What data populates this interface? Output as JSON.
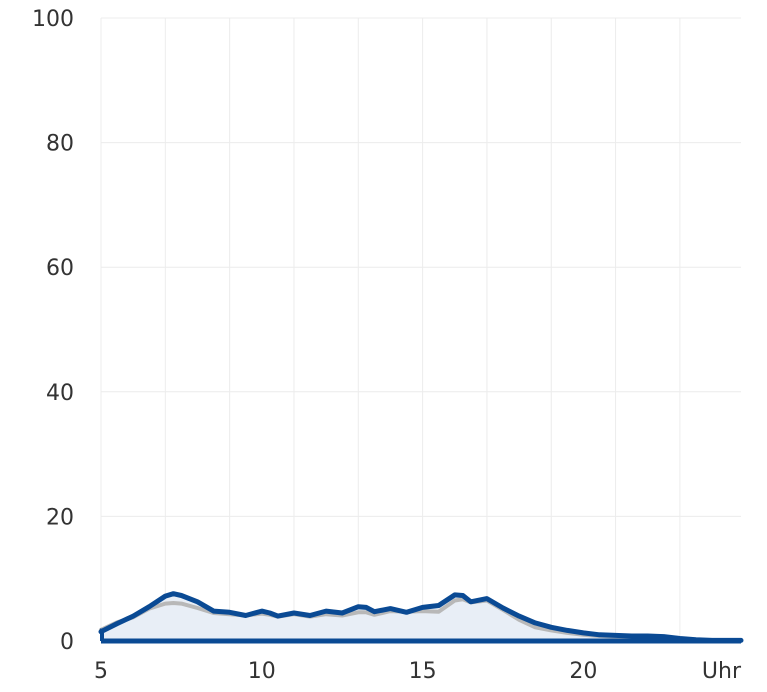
{
  "chart_data": {
    "type": "area",
    "x_unit_label": "Uhr",
    "xlim": [
      5,
      24.9
    ],
    "ylim": [
      0,
      100
    ],
    "x_ticks": [
      5,
      10,
      15,
      20
    ],
    "y_ticks": [
      0,
      20,
      40,
      60,
      80,
      100
    ],
    "grid": true,
    "series": [
      {
        "color": "#0a4a94",
        "fill": "#e8eef6",
        "x": [
          5.0,
          5.5,
          6.0,
          6.5,
          7.0,
          7.25,
          7.5,
          8.0,
          8.5,
          9.0,
          9.5,
          10.0,
          10.25,
          10.5,
          11.0,
          11.5,
          12.0,
          12.5,
          13.0,
          13.25,
          13.5,
          14.0,
          14.5,
          15.0,
          15.5,
          16.0,
          16.25,
          16.5,
          17.0,
          17.5,
          18.0,
          18.5,
          19.0,
          19.5,
          20.0,
          20.5,
          21.0,
          21.5,
          22.0,
          22.5,
          23.0,
          23.5,
          24.0,
          24.5,
          24.9
        ],
        "values": [
          1.5,
          2.8,
          4.0,
          5.5,
          7.2,
          7.6,
          7.3,
          6.3,
          4.8,
          4.6,
          4.1,
          4.8,
          4.5,
          4.0,
          4.5,
          4.1,
          4.8,
          4.5,
          5.5,
          5.4,
          4.7,
          5.2,
          4.6,
          5.4,
          5.7,
          7.4,
          7.3,
          6.3,
          6.8,
          5.3,
          4.0,
          2.9,
          2.2,
          1.7,
          1.3,
          1.0,
          0.9,
          0.8,
          0.8,
          0.7,
          0.4,
          0.2,
          0.1,
          0.1,
          0.1
        ]
      },
      {
        "color": "#b8b8b8",
        "x": [
          5.0,
          5.5,
          6.0,
          6.5,
          7.0,
          7.25,
          7.5,
          8.0,
          8.5,
          9.0,
          9.5,
          10.0,
          10.25,
          10.5,
          11.0,
          11.5,
          12.0,
          12.5,
          13.0,
          13.25,
          13.5,
          14.0,
          14.5,
          15.0,
          15.5,
          16.0,
          16.25,
          16.5,
          17.0,
          17.5,
          18.0,
          18.5,
          19.0,
          19.5,
          20.0,
          20.5,
          21.0,
          21.5,
          22.0,
          22.5,
          23.0,
          23.5,
          24.0,
          24.5,
          24.9
        ],
        "values": [
          1.8,
          3.0,
          3.8,
          5.2,
          6.0,
          6.1,
          6.0,
          5.3,
          4.5,
          4.3,
          4.1,
          4.4,
          4.2,
          3.9,
          4.3,
          3.9,
          4.3,
          4.1,
          4.6,
          4.6,
          4.2,
          4.8,
          4.7,
          4.8,
          4.7,
          6.5,
          6.7,
          6.2,
          6.5,
          5.0,
          3.4,
          2.2,
          1.7,
          1.3,
          1.0,
          0.8,
          0.7,
          0.6,
          0.5,
          0.4,
          0.3,
          0.2,
          0.1,
          0.1,
          0.1
        ]
      }
    ]
  }
}
